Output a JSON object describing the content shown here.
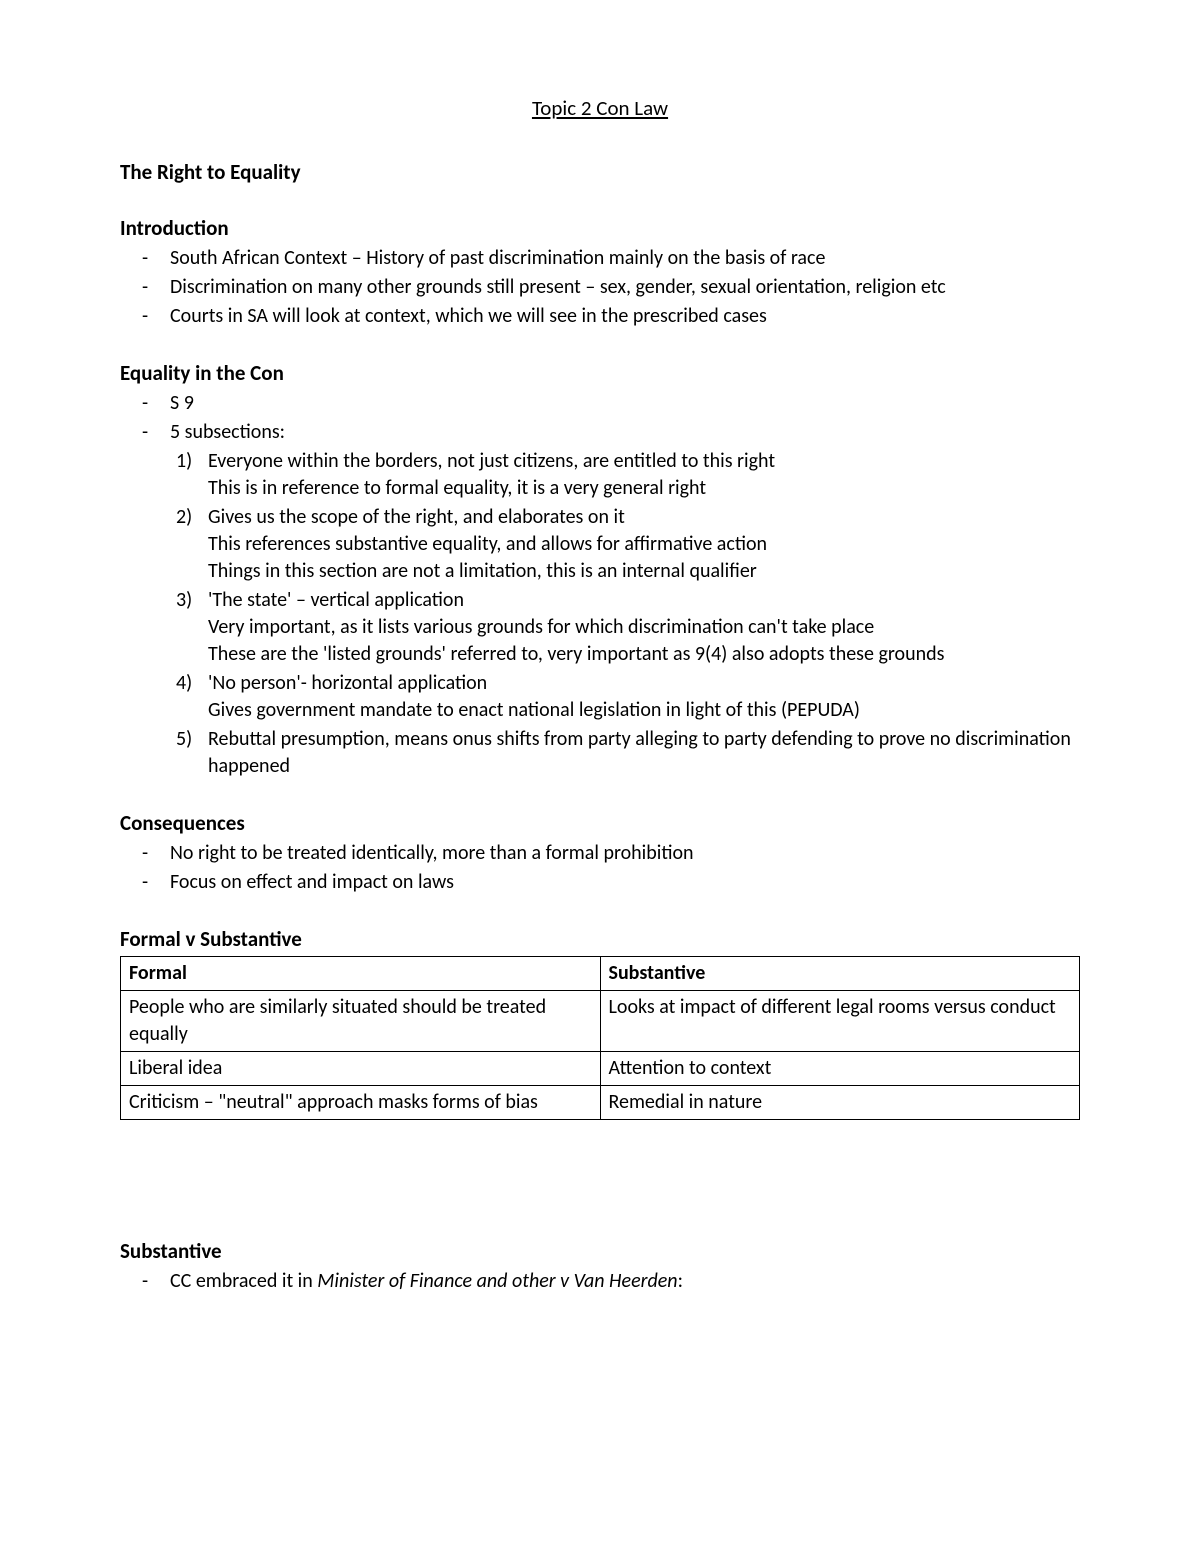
{
  "title": "Topic 2 Con Law",
  "h1": "The Right to Equality",
  "intro": {
    "heading": "Introduction",
    "items": [
      "South African Context – History of past discrimination mainly on the basis of race",
      "Discrimination on many other grounds still present – sex, gender, sexual orientation, religion etc",
      "Courts in SA will look at context, which we will see in the prescribed cases"
    ]
  },
  "eqcon": {
    "heading": "Equality in the Con",
    "leadItems": [
      "S 9",
      "5 subsections:"
    ],
    "subs": [
      {
        "main": "Everyone within the borders, not just citizens, are entitled to this right",
        "extra": [
          "This is in reference to formal equality, it is a very general right"
        ]
      },
      {
        "main": "Gives us the scope of the right, and elaborates on it",
        "extra": [
          "This references substantive equality, and allows for affirmative action",
          "Things in this section are not a limitation, this is an internal qualifier"
        ]
      },
      {
        "main": "'The state' – vertical application",
        "extra": [
          "Very important, as it lists various grounds for which discrimination can't take place",
          "These are the 'listed grounds' referred to, very important as 9(4) also adopts these grounds"
        ]
      },
      {
        "main": "'No person'- horizontal application",
        "extra": [
          "Gives government mandate to enact national legislation in light of this (PEPUDA)"
        ]
      },
      {
        "main": "Rebuttal presumption, means onus shifts from party alleging to party defending to prove no discrimination happened",
        "extra": []
      }
    ]
  },
  "cons": {
    "heading": "Consequences",
    "items": [
      "No right to be treated identically, more than a formal prohibition",
      "Focus on effect and impact on laws"
    ]
  },
  "fvs": {
    "heading": "Formal v Substantive",
    "cols": [
      "Formal",
      "Substantive"
    ],
    "rows": [
      [
        "People who are similarly situated should be treated equally",
        "Looks at impact of different legal rooms versus conduct"
      ],
      [
        "Liberal idea",
        "Attention to context"
      ],
      [
        "Criticism – \"neutral\" approach masks forms of bias",
        "Remedial in nature"
      ]
    ]
  },
  "subst": {
    "heading": "Substantive",
    "itemPrefix": "CC embraced it in ",
    "itemItalic": "Minister of Finance and other v Van Heerden",
    "itemSuffix": ":"
  }
}
